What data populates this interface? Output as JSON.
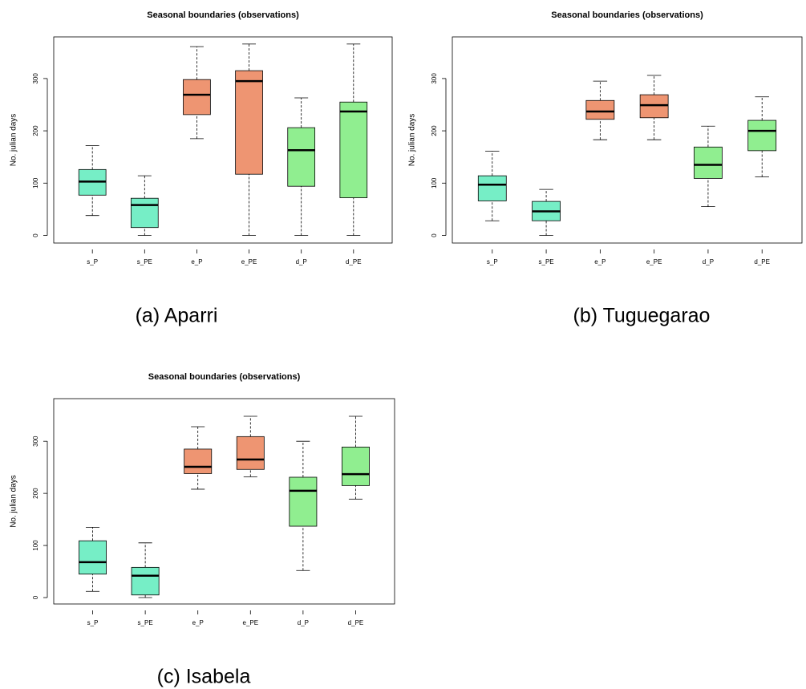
{
  "chart_data": [
    {
      "type": "box",
      "title": "Seasonal boundaries (observations)",
      "caption": "(a) Aparri",
      "ylabel": "No. julian days",
      "categories": [
        "s_P",
        "s_PE",
        "e_P",
        "e_PE",
        "d_P",
        "d_PE"
      ],
      "colors": [
        "#76eec6",
        "#76eec6",
        "#ee9572",
        "#ee9572",
        "#90ee90",
        "#90ee90"
      ],
      "boxes": [
        {
          "min": 38,
          "q1": 77,
          "median": 103,
          "q3": 126,
          "max": 172
        },
        {
          "min": 0,
          "q1": 15,
          "median": 58,
          "q3": 71,
          "max": 114
        },
        {
          "min": 185,
          "q1": 231,
          "median": 269,
          "q3": 298,
          "max": 361
        },
        {
          "min": 0,
          "q1": 117,
          "median": 295,
          "q3": 315,
          "max": 366
        },
        {
          "min": 0,
          "q1": 94,
          "median": 163,
          "q3": 206,
          "max": 263
        },
        {
          "min": 0,
          "q1": 72,
          "median": 237,
          "q3": 255,
          "max": 366
        }
      ],
      "ylim": [
        -14.6,
        379.6
      ],
      "yticks": [
        0,
        100,
        200,
        300
      ]
    },
    {
      "type": "box",
      "title": "Seasonal boundaries (observations)",
      "caption": "(b) Tuguegarao",
      "ylabel": "No. julian days",
      "categories": [
        "s_P",
        "s_PE",
        "e_P",
        "e_PE",
        "d_P",
        "d_PE"
      ],
      "colors": [
        "#76eec6",
        "#76eec6",
        "#ee9572",
        "#ee9572",
        "#90ee90",
        "#90ee90"
      ],
      "boxes": [
        {
          "min": 28,
          "q1": 66,
          "median": 97,
          "q3": 114,
          "max": 161
        },
        {
          "min": 0,
          "q1": 28,
          "median": 46,
          "q3": 65,
          "max": 88
        },
        {
          "min": 183,
          "q1": 222,
          "median": 237,
          "q3": 258,
          "max": 295
        },
        {
          "min": 183,
          "q1": 225,
          "median": 249,
          "q3": 269,
          "max": 306
        },
        {
          "min": 55,
          "q1": 109,
          "median": 135,
          "q3": 169,
          "max": 209
        },
        {
          "min": 112,
          "q1": 162,
          "median": 200,
          "q3": 220,
          "max": 265
        }
      ],
      "ylim": [
        -14.6,
        379.6
      ],
      "yticks": [
        0,
        100,
        200,
        300
      ]
    },
    {
      "type": "box",
      "title": "Seasonal boundaries (observations)",
      "caption": "(c) Isabela",
      "ylabel": "No. julian days",
      "categories": [
        "s_P",
        "s_PE",
        "e_P",
        "e_PE",
        "d_P",
        "d_PE"
      ],
      "colors": [
        "#76eec6",
        "#76eec6",
        "#ee9572",
        "#ee9572",
        "#90ee90",
        "#90ee90"
      ],
      "boxes": [
        {
          "min": 12,
          "q1": 45,
          "median": 68,
          "q3": 109,
          "max": 135
        },
        {
          "min": 0,
          "q1": 5,
          "median": 42,
          "q3": 58,
          "max": 105
        },
        {
          "min": 208,
          "q1": 238,
          "median": 251,
          "q3": 285,
          "max": 328
        },
        {
          "min": 232,
          "q1": 246,
          "median": 265,
          "q3": 309,
          "max": 348
        },
        {
          "min": 52,
          "q1": 137,
          "median": 205,
          "q3": 231,
          "max": 300
        },
        {
          "min": 189,
          "q1": 215,
          "median": 237,
          "q3": 289,
          "max": 348
        }
      ],
      "ylim": [
        -12.3,
        381.9
      ],
      "yticks": [
        0,
        100,
        200,
        300
      ]
    }
  ]
}
